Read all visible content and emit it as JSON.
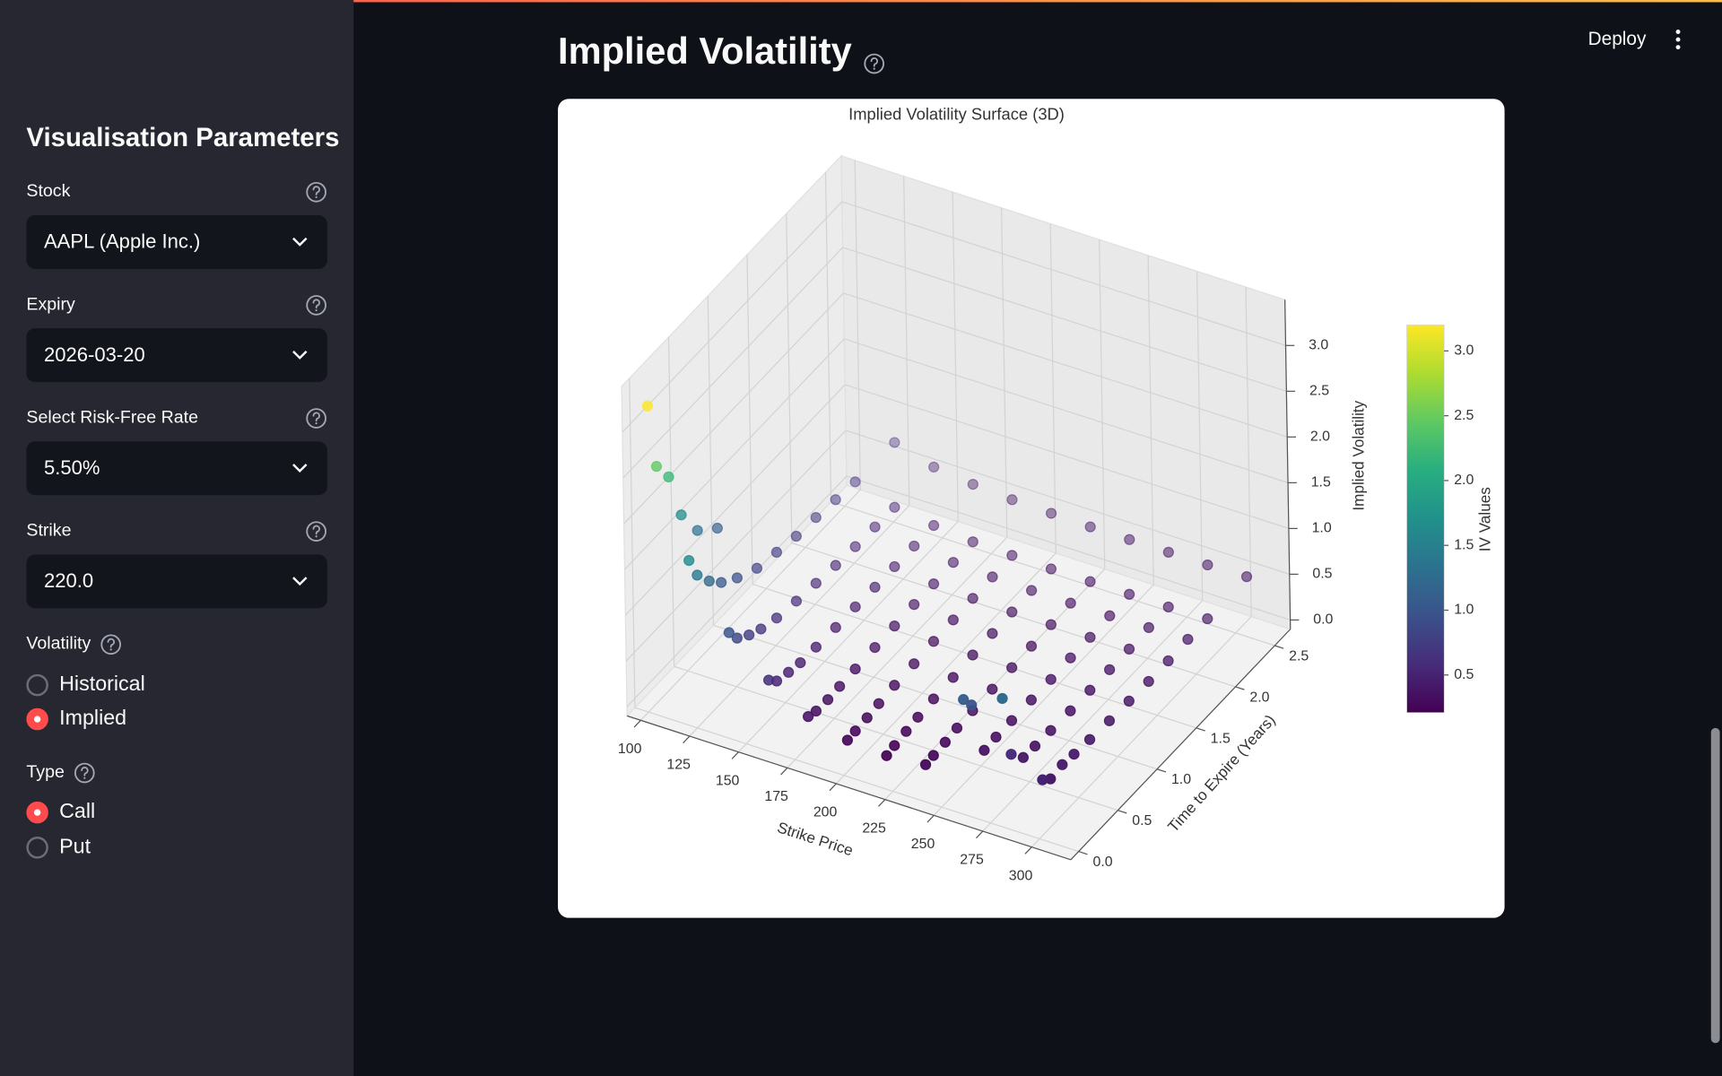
{
  "header": {
    "deploy": "Deploy"
  },
  "sidebar": {
    "title": "Visualisation Parameters",
    "fields": [
      {
        "label": "Stock",
        "value": "AAPL (Apple Inc.)"
      },
      {
        "label": "Expiry",
        "value": "2026-03-20"
      },
      {
        "label": "Select Risk-Free Rate",
        "value": "5.50%"
      },
      {
        "label": "Strike",
        "value": "220.0"
      }
    ],
    "radio_groups": [
      {
        "label": "Volatility",
        "options": [
          "Historical",
          "Implied"
        ],
        "selected": 1
      },
      {
        "label": "Type",
        "options": [
          "Call",
          "Put"
        ],
        "selected": 0
      }
    ]
  },
  "main": {
    "title": "Implied Volatility"
  },
  "chart_data": {
    "type": "scatter3d",
    "title": "Implied Volatility Surface (3D)",
    "xlabel": "Strike Price",
    "ylabel": "Time to Expire (Years)",
    "zlabel": "Implied Volatility",
    "xlim": [
      93,
      320
    ],
    "ylim": [
      -0.1,
      2.7
    ],
    "zlim": [
      -0.1,
      3.5
    ],
    "xticks": [
      100,
      125,
      150,
      175,
      200,
      225,
      250,
      275,
      300
    ],
    "yticks": [
      {
        "value": 0,
        "label": "0.0"
      },
      0.5,
      {
        "value": 1,
        "label": "1.0"
      },
      1.5,
      {
        "value": 2,
        "label": "2.0"
      },
      2.5
    ],
    "zticks": [
      {
        "value": 0,
        "label": "0.0"
      },
      0.5,
      {
        "value": 1,
        "label": "1.0"
      },
      1.5,
      {
        "value": 2,
        "label": "2.0"
      },
      2.5,
      {
        "value": 3,
        "label": "3.0"
      }
    ],
    "colorbar": {
      "label": "IV Values",
      "colormap": "viridis",
      "clim": [
        0.21,
        3.2
      ],
      "ticks": [
        0.5,
        {
          "value": 1,
          "label": "1.0"
        },
        1.5,
        {
          "value": 2,
          "label": "2.0"
        },
        2.5,
        {
          "value": 3,
          "label": "3.0"
        }
      ]
    },
    "groups": [
      {
        "time": 0.05,
        "strikes": [
          100,
          120,
          140,
          160,
          180,
          200,
          220,
          240,
          260,
          280,
          300
        ],
        "iv": [
          3.2,
          1.65,
          1.0,
          0.62,
          0.36,
          0.24,
          0.21,
          0.25,
          1.1,
          1.25,
          0.5
        ]
      },
      {
        "time": 0.15,
        "strikes": [
          100,
          120,
          140,
          160,
          180,
          200,
          220,
          240,
          260,
          280,
          300
        ],
        "iv": [
          2.45,
          1.4,
          0.85,
          0.52,
          0.33,
          0.25,
          0.23,
          0.26,
          0.95,
          0.55,
          0.42
        ]
      },
      {
        "time": 0.3,
        "strikes": [
          100,
          120,
          140,
          160,
          180,
          200,
          220,
          240,
          260,
          280,
          300
        ],
        "iv": [
          2.2,
          1.2,
          0.75,
          0.48,
          0.32,
          0.26,
          0.25,
          0.27,
          0.32,
          0.38,
          0.44
        ]
      },
      {
        "time": 0.45,
        "strikes": [
          100,
          120,
          140,
          160,
          180,
          200,
          220,
          240,
          260,
          280,
          300
        ],
        "iv": [
          1.65,
          1.05,
          0.68,
          0.45,
          0.33,
          0.28,
          0.27,
          0.29,
          0.33,
          0.37,
          0.42
        ]
      },
      {
        "time": 0.65,
        "strikes": [
          100,
          120,
          140,
          160,
          180,
          200,
          220,
          240,
          260,
          280,
          300
        ],
        "iv": [
          1.3,
          0.92,
          0.62,
          0.44,
          0.34,
          0.3,
          0.29,
          0.3,
          0.33,
          0.36,
          0.4
        ]
      },
      {
        "time": 0.9,
        "strikes": [
          100,
          120,
          140,
          160,
          180,
          200,
          220,
          240,
          260,
          280,
          300
        ],
        "iv": [
          1.1,
          0.8,
          0.58,
          0.43,
          0.35,
          0.31,
          0.3,
          0.31,
          0.33,
          0.35,
          0.38
        ]
      },
      {
        "time": 1.15,
        "strikes": [
          120,
          140,
          160,
          180,
          200,
          220,
          240,
          260,
          280,
          300
        ],
        "iv": [
          0.75,
          0.55,
          0.43,
          0.36,
          0.33,
          0.32,
          0.32,
          0.33,
          0.35,
          0.37
        ]
      },
      {
        "time": 1.4,
        "strikes": [
          120,
          140,
          160,
          180,
          200,
          220,
          240,
          260,
          280,
          300
        ],
        "iv": [
          0.7,
          0.52,
          0.42,
          0.37,
          0.34,
          0.33,
          0.33,
          0.34,
          0.35,
          0.36
        ]
      },
      {
        "time": 1.65,
        "strikes": [
          120,
          140,
          160,
          180,
          200,
          220,
          240,
          260,
          280,
          300
        ],
        "iv": [
          0.68,
          0.5,
          0.42,
          0.37,
          0.35,
          0.34,
          0.34,
          0.34,
          0.35,
          0.36
        ]
      },
      {
        "time": 1.9,
        "strikes": [
          120,
          140,
          160,
          180,
          200,
          220,
          240,
          260,
          280,
          300
        ],
        "iv": [
          0.65,
          0.49,
          0.42,
          0.38,
          0.36,
          0.35,
          0.35,
          0.35,
          0.36,
          0.37
        ]
      },
      {
        "time": 2.15,
        "strikes": [
          120,
          140,
          160,
          180,
          200,
          220,
          240,
          260,
          280,
          300
        ],
        "iv": [
          0.62,
          0.48,
          0.42,
          0.38,
          0.37,
          0.36,
          0.36,
          0.36,
          0.36,
          0.37
        ]
      },
      {
        "time": 2.65,
        "strikes": [
          120,
          140,
          160,
          180,
          200,
          220,
          240,
          260,
          280,
          300
        ],
        "iv": [
          0.6,
          0.47,
          0.42,
          0.39,
          0.38,
          0.37,
          0.37,
          0.37,
          0.37,
          0.38
        ]
      }
    ]
  }
}
